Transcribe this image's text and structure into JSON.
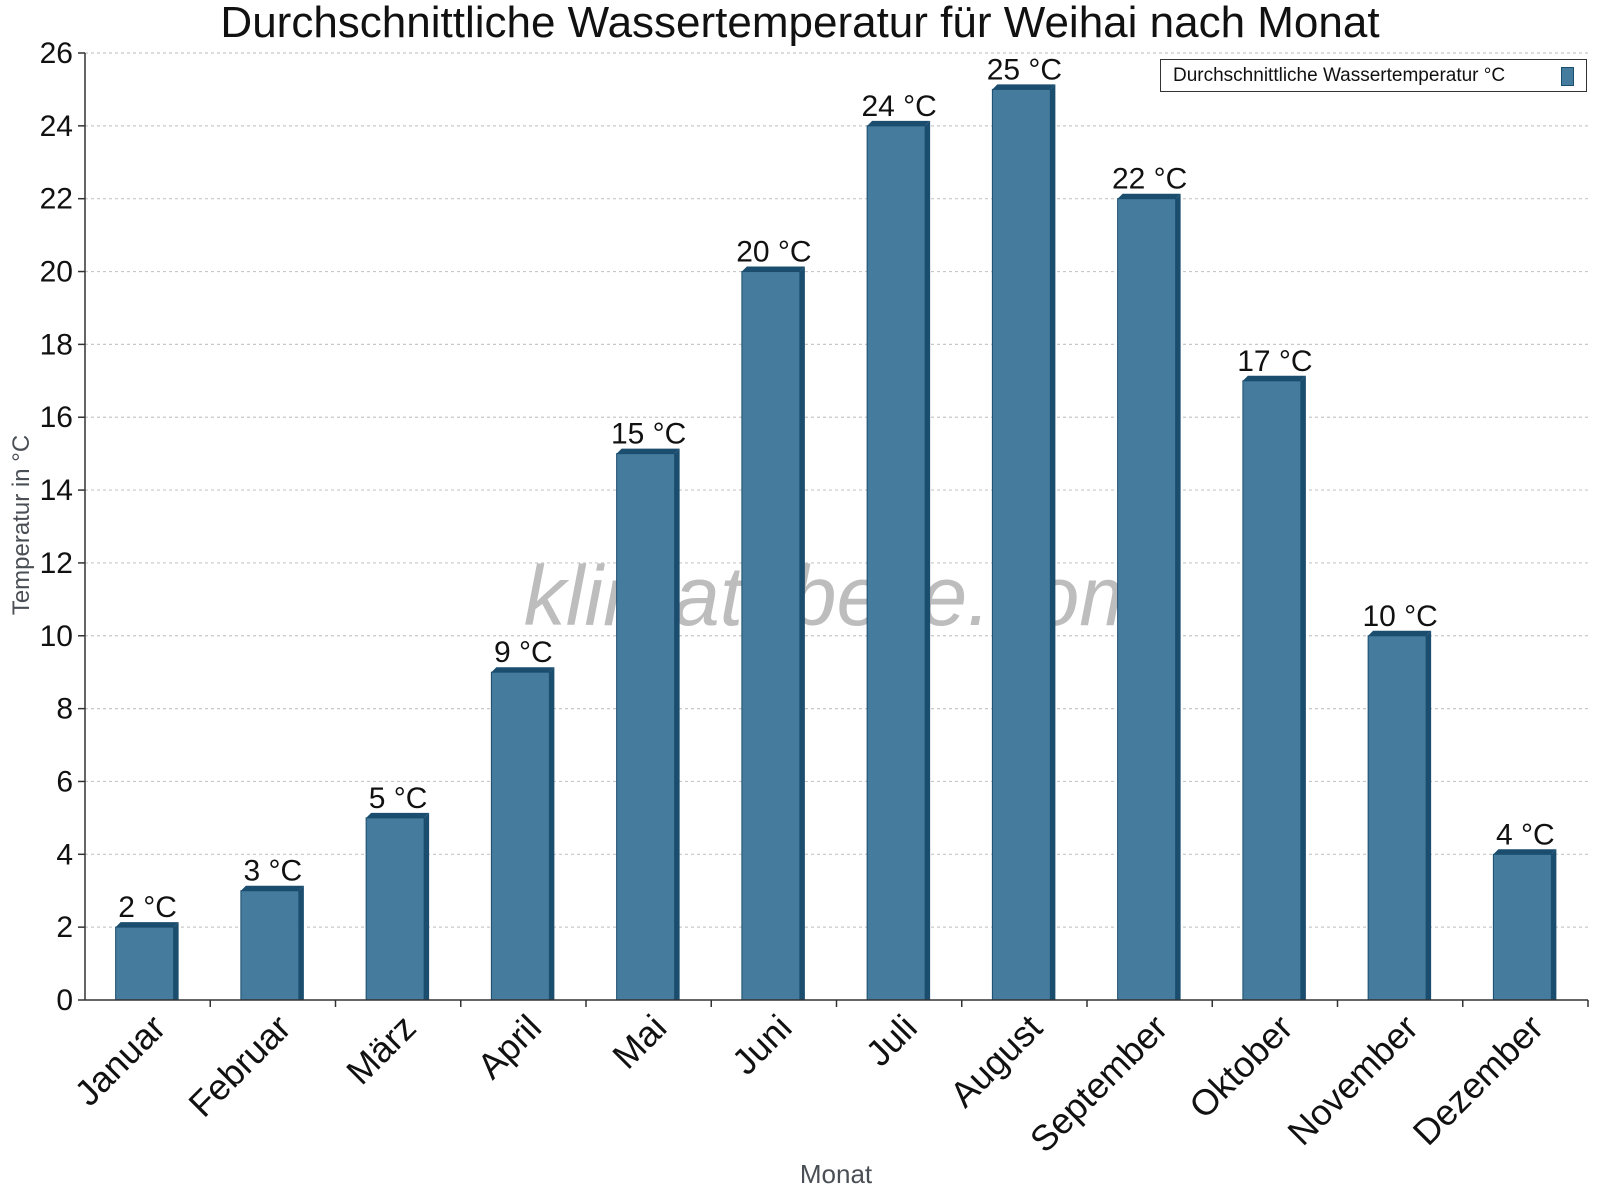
{
  "chart_data": {
    "type": "bar",
    "title": "Durchschnittliche Wassertemperatur für Weihai nach Monat",
    "xlabel": "Monat",
    "ylabel": "Temperatur in °C",
    "categories": [
      "Januar",
      "Februar",
      "März",
      "April",
      "Mai",
      "Juni",
      "Juli",
      "August",
      "September",
      "Oktober",
      "November",
      "Dezember"
    ],
    "series": [
      {
        "name": "Durchschnittliche Wassertemperatur °C",
        "values": [
          2,
          3,
          5,
          9,
          15,
          20,
          24,
          25,
          22,
          17,
          10,
          4
        ],
        "data_labels": [
          "2 °C",
          "3 °C",
          "5 °C",
          "9 °C",
          "15 °C",
          "20 °C",
          "24 °C",
          "25 °C",
          "22 °C",
          "17 °C",
          "10 °C",
          "4 °C"
        ]
      }
    ],
    "ylim": [
      0,
      26
    ],
    "yticks": [
      "0",
      "2",
      "4",
      "6",
      "8",
      "10",
      "12",
      "14",
      "16",
      "18",
      "20",
      "22",
      "24",
      "26"
    ],
    "grid": true,
    "legend_position": "top-right",
    "watermark": "klimatabelle.com",
    "colors": {
      "bar": "#457b9d",
      "bar_edge": "#1b4d6e",
      "grid": "#c8c8c8",
      "axis": "#333333"
    }
  }
}
